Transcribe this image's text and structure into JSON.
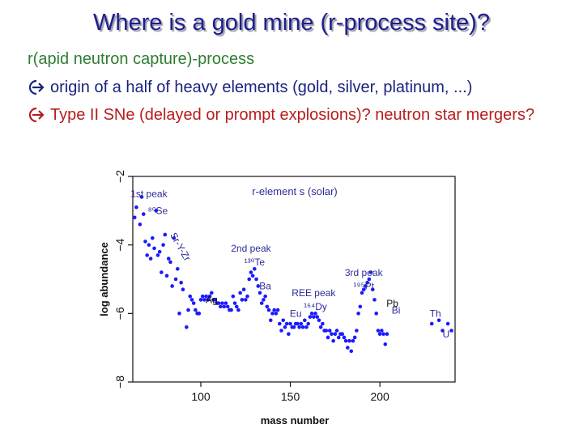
{
  "slide": {
    "title": "Where is a gold mine (r-process site)?",
    "subheading": "r(apid neutron capture)-process",
    "bullets": [
      "origin of a half of heavy elements (gold, silver, platinum, ...)",
      "Type II SNe (delayed or prompt explosions)? neutron star mergers?"
    ],
    "icons": {
      "bullet": "arrow-right-circle-icon"
    },
    "colors": {
      "title": "#1f1f8f",
      "subheading": "#2e7d32",
      "bullet1": "#1a237e",
      "bullet2": "#b71c1c",
      "points": "#1a1aff"
    }
  },
  "chart_data": {
    "type": "scatter",
    "title": "r-element s (solar)",
    "xlabel": "mass number",
    "ylabel": "log abundance",
    "xlim": [
      62,
      242
    ],
    "ylim": [
      -8,
      -2
    ],
    "xticks": [
      100,
      150,
      200
    ],
    "yticks": [
      -2,
      -4,
      -6,
      -8
    ],
    "grid": false,
    "series": [
      {
        "x": [
          63,
          64,
          66,
          67,
          68,
          69,
          70,
          71,
          72,
          73,
          74,
          75,
          76,
          77,
          78,
          79,
          80,
          81,
          82,
          83,
          84,
          85,
          86,
          87,
          88,
          89,
          90,
          92,
          93,
          94,
          95,
          96,
          97,
          98,
          99,
          100,
          101,
          102,
          103,
          104,
          105,
          106,
          107,
          108,
          109,
          110,
          111,
          112,
          113,
          114,
          115,
          116,
          117,
          118,
          119,
          120,
          121,
          122,
          123,
          124,
          125,
          126,
          127,
          128,
          129,
          130,
          131,
          132,
          133,
          134,
          135,
          136,
          137,
          138,
          139,
          140,
          141,
          142,
          143,
          144,
          145,
          146,
          147,
          148,
          149,
          150,
          151,
          152,
          153,
          154,
          155,
          156,
          157,
          158,
          159,
          160,
          161,
          162,
          163,
          164,
          165,
          166,
          167,
          168,
          169,
          170,
          171,
          172,
          173,
          174,
          175,
          176,
          177,
          178,
          179,
          180,
          181,
          182,
          183,
          184,
          185,
          186,
          187,
          188,
          189,
          190,
          191,
          192,
          193,
          194,
          195,
          196,
          197,
          198,
          199,
          200,
          201,
          202,
          203,
          204,
          229,
          233,
          235,
          238,
          240
        ],
        "y": [
          -3.2,
          -2.9,
          -3.4,
          -2.6,
          -3.1,
          -3.9,
          -4.3,
          -4.0,
          -4.4,
          -3.8,
          -4.1,
          -3.0,
          -4.3,
          -4.2,
          -4.8,
          -4.0,
          -3.7,
          -4.9,
          -4.4,
          -4.5,
          -5.2,
          -3.8,
          -5.0,
          -4.7,
          -6.0,
          -5.1,
          -5.3,
          -6.4,
          -5.9,
          -5.5,
          -5.6,
          -5.7,
          -5.9,
          -6.0,
          -6.0,
          -5.6,
          -5.5,
          -5.6,
          -5.5,
          -5.6,
          -5.5,
          -5.4,
          -5.6,
          -5.6,
          -5.7,
          -5.7,
          -5.8,
          -5.7,
          -5.8,
          -5.7,
          -5.8,
          -5.9,
          -5.9,
          -5.5,
          -5.7,
          -5.8,
          -5.9,
          -5.4,
          -5.6,
          -5.3,
          -5.6,
          -5.5,
          -5.0,
          -4.8,
          -4.9,
          -4.7,
          -5.0,
          -5.2,
          -5.4,
          -5.7,
          -5.6,
          -5.5,
          -5.8,
          -5.9,
          -6.2,
          -6.0,
          -5.9,
          -6.0,
          -5.9,
          -6.3,
          -6.5,
          -6.2,
          -6.4,
          -6.3,
          -6.6,
          -6.3,
          -6.4,
          -6.4,
          -6.3,
          -6.3,
          -6.4,
          -6.3,
          -6.4,
          -6.2,
          -6.4,
          -6.3,
          -6.1,
          -6.0,
          -6.1,
          -6.0,
          -6.1,
          -6.2,
          -6.4,
          -6.3,
          -6.5,
          -6.5,
          -6.7,
          -6.5,
          -6.6,
          -6.8,
          -6.6,
          -6.5,
          -6.7,
          -6.6,
          -6.6,
          -6.7,
          -6.8,
          -7.0,
          -6.8,
          -7.1,
          -6.8,
          -6.7,
          -6.5,
          -6.0,
          -5.8,
          -5.4,
          -5.3,
          -5.2,
          -5.1,
          -5.0,
          -4.8,
          -5.3,
          -5.6,
          -6.0,
          -6.5,
          -6.6,
          -6.5,
          -6.6,
          -6.9,
          -6.6,
          -6.3,
          -6.2,
          -6.5,
          -6.3,
          -6.5
        ]
      }
    ],
    "annotations": [
      {
        "text": "1st peak",
        "x": 71,
        "y": -2.6,
        "style": "blue"
      },
      {
        "text": "⁸⁰Se",
        "x": 76,
        "y": -3.1,
        "style": "blue"
      },
      {
        "text": "Sr-Y-Zr",
        "x": 87,
        "y": -4.1,
        "style": "blue",
        "rotate": 60
      },
      {
        "text": "Ag",
        "x": 106,
        "y": -5.7,
        "style": "dark"
      },
      {
        "text": "2nd peak",
        "x": 128,
        "y": -4.2,
        "style": "blue"
      },
      {
        "text": "¹³⁰Te",
        "x": 130,
        "y": -4.6,
        "style": "blue"
      },
      {
        "text": "Ba",
        "x": 136,
        "y": -5.3,
        "style": "blue"
      },
      {
        "text": "REE peak",
        "x": 163,
        "y": -5.5,
        "style": "blue"
      },
      {
        "text": "¹⁶⁴Dy",
        "x": 164,
        "y": -5.9,
        "style": "blue"
      },
      {
        "text": "Eu",
        "x": 153,
        "y": -6.1,
        "style": "blue"
      },
      {
        "text": "3rd peak",
        "x": 191,
        "y": -4.9,
        "style": "blue"
      },
      {
        "text": "¹⁹⁵Pt",
        "x": 191,
        "y": -5.3,
        "style": "blue"
      },
      {
        "text": "Pb",
        "x": 207,
        "y": -5.8,
        "style": "dark"
      },
      {
        "text": "Bi",
        "x": 209,
        "y": -6.0,
        "style": "blue"
      },
      {
        "text": "Th",
        "x": 231,
        "y": -6.1,
        "style": "blue"
      },
      {
        "text": "U",
        "x": 237,
        "y": -6.7,
        "style": "blue"
      }
    ]
  }
}
